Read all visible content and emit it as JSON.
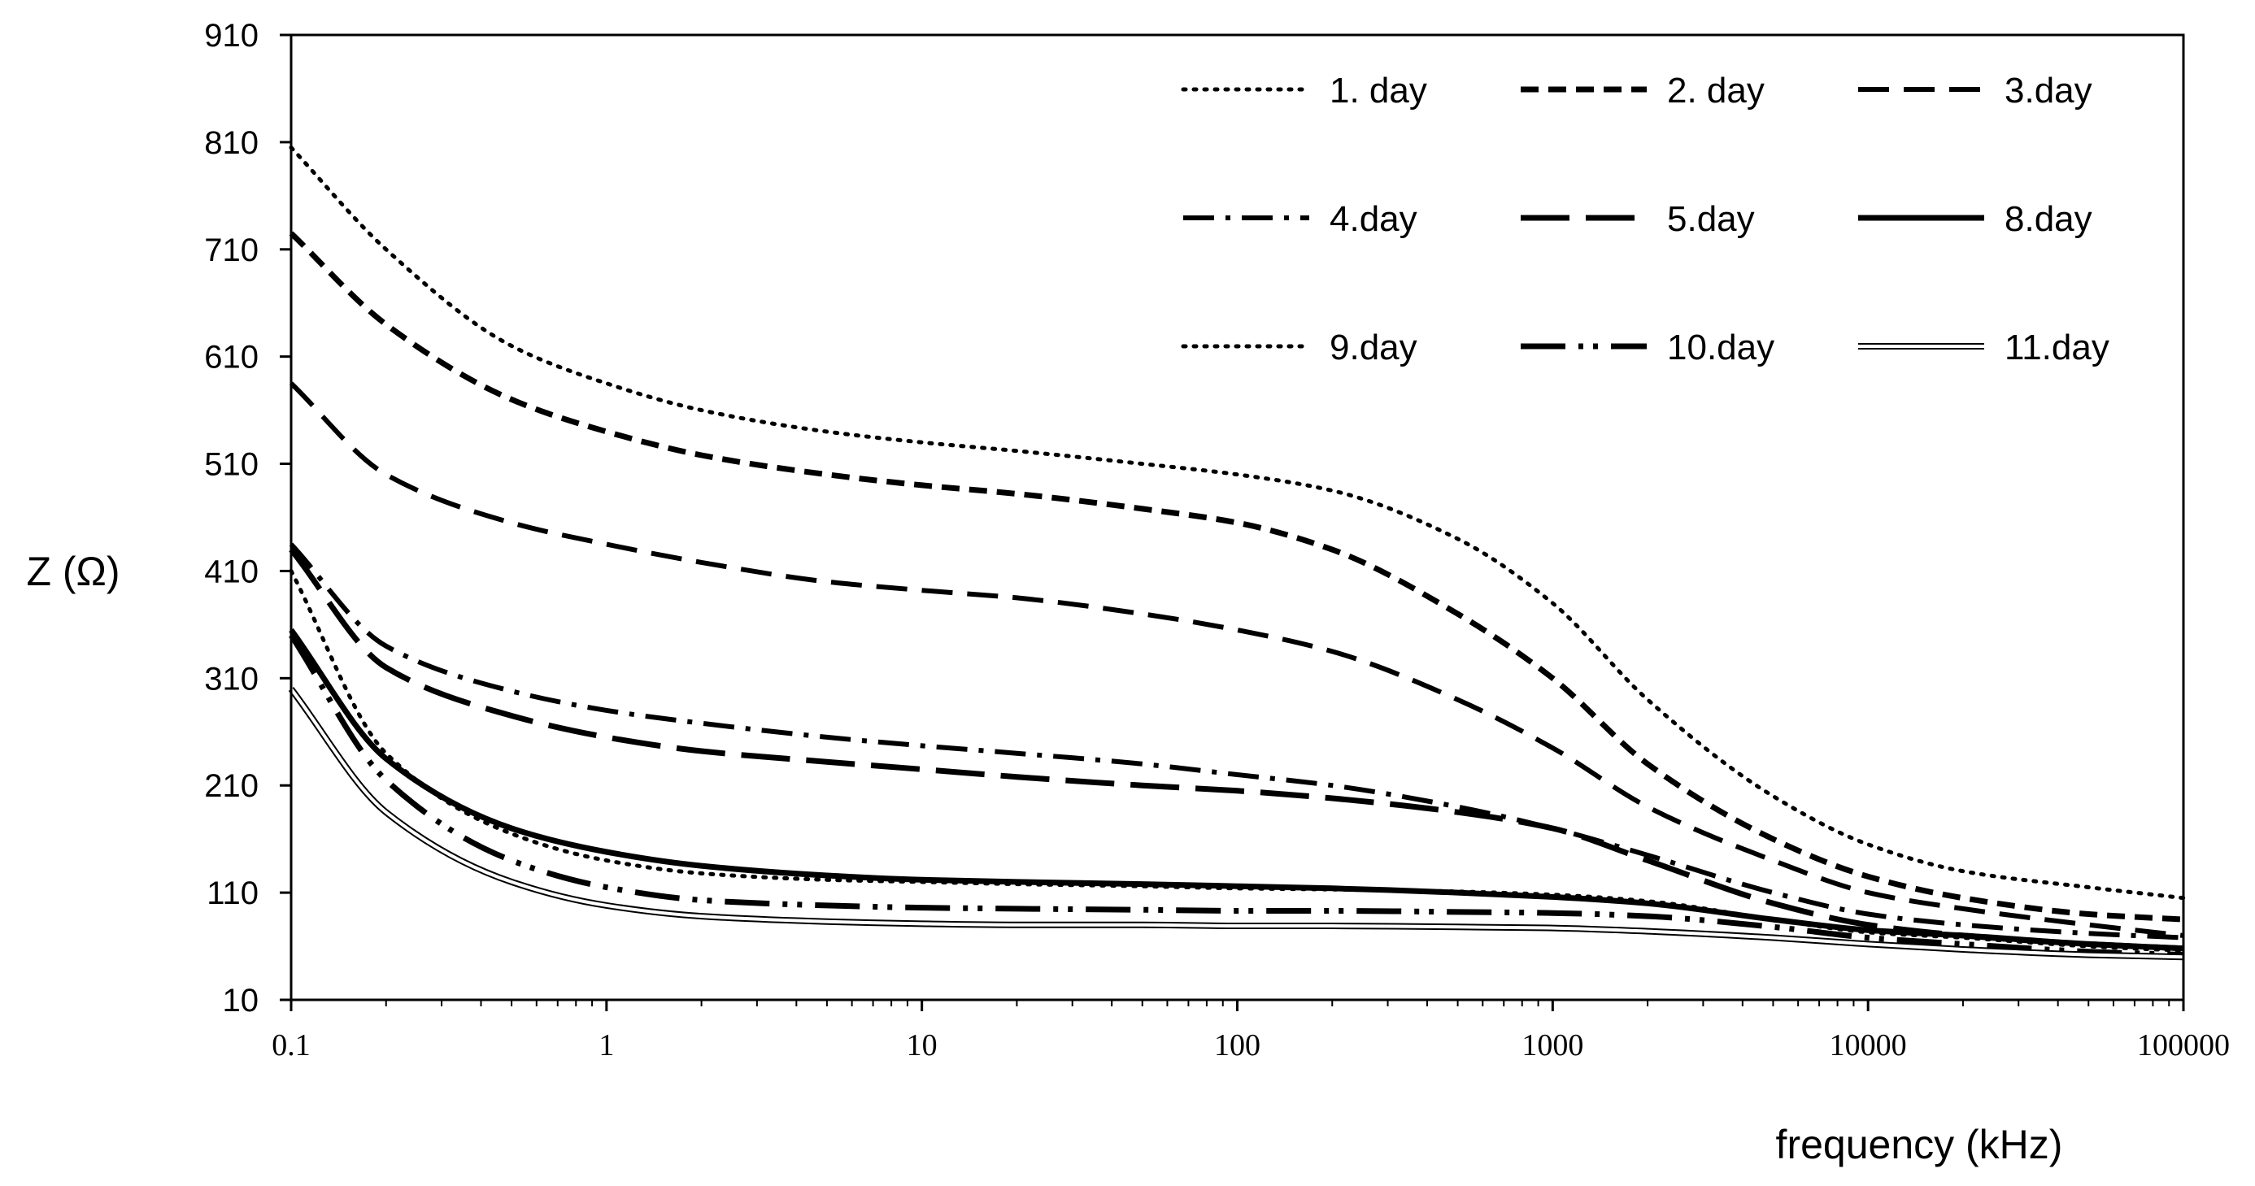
{
  "chart_data": {
    "type": "line",
    "title": "",
    "xlabel": "frequency (kHz)",
    "ylabel": "Z (Ω)",
    "xscale": "log",
    "xlim": [
      0.1,
      100000
    ],
    "ylim": [
      10,
      910
    ],
    "x_ticks": [
      "0.1",
      "1",
      "10",
      "100",
      "1000",
      "10000",
      "100000"
    ],
    "y_ticks": [
      "10",
      "110",
      "210",
      "310",
      "410",
      "510",
      "610",
      "710",
      "810",
      "910"
    ],
    "grid": false,
    "legend_position": "top-right",
    "x": [
      0.1,
      0.2,
      0.5,
      1,
      2,
      5,
      10,
      20,
      50,
      100,
      200,
      500,
      1000,
      2000,
      5000,
      10000,
      20000,
      50000,
      100000
    ],
    "series": [
      {
        "name": "1. day",
        "style": "dotted",
        "values": [
          805,
          710,
          620,
          585,
          560,
          540,
          530,
          522,
          510,
          500,
          485,
          440,
          380,
          290,
          200,
          155,
          130,
          115,
          105
        ]
      },
      {
        "name": "2. day",
        "style": "short-dash",
        "values": [
          725,
          640,
          570,
          540,
          518,
          500,
          490,
          482,
          468,
          455,
          430,
          370,
          310,
          230,
          160,
          125,
          105,
          90,
          85
        ]
      },
      {
        "name": "3.day",
        "style": "dash",
        "values": [
          585,
          500,
          455,
          435,
          418,
          400,
          392,
          385,
          370,
          355,
          335,
          290,
          245,
          190,
          140,
          110,
          95,
          80,
          70
        ]
      },
      {
        "name": "4.day",
        "style": "dash-dot",
        "values": [
          435,
          340,
          298,
          280,
          268,
          255,
          247,
          240,
          230,
          220,
          210,
          190,
          170,
          145,
          110,
          90,
          80,
          72,
          68
        ]
      },
      {
        "name": "5.day",
        "style": "long-dash",
        "values": [
          430,
          320,
          275,
          255,
          242,
          232,
          225,
          218,
          210,
          205,
          198,
          185,
          170,
          140,
          100,
          80,
          70,
          62,
          58
        ]
      },
      {
        "name": "8.day",
        "style": "solid",
        "values": [
          355,
          235,
          170,
          148,
          135,
          126,
          122,
          120,
          118,
          116,
          114,
          110,
          106,
          100,
          85,
          75,
          70,
          62,
          58
        ]
      },
      {
        "name": "9.day",
        "style": "dotted",
        "values": [
          410,
          240,
          165,
          140,
          128,
          122,
          120,
          118,
          116,
          114,
          113,
          111,
          108,
          102,
          85,
          73,
          68,
          60,
          56
        ]
      },
      {
        "name": "10.day",
        "style": "long-dash-dot-dot",
        "values": [
          350,
          215,
          140,
          115,
          103,
          98,
          96,
          95,
          94,
          93,
          93,
          92,
          91,
          88,
          78,
          68,
          62,
          55,
          52
        ]
      },
      {
        "name": "11.day",
        "style": "double",
        "values": [
          300,
          185,
          120,
          98,
          88,
          83,
          81,
          80,
          80,
          79,
          79,
          78,
          77,
          74,
          68,
          62,
          57,
          52,
          50
        ]
      }
    ]
  }
}
